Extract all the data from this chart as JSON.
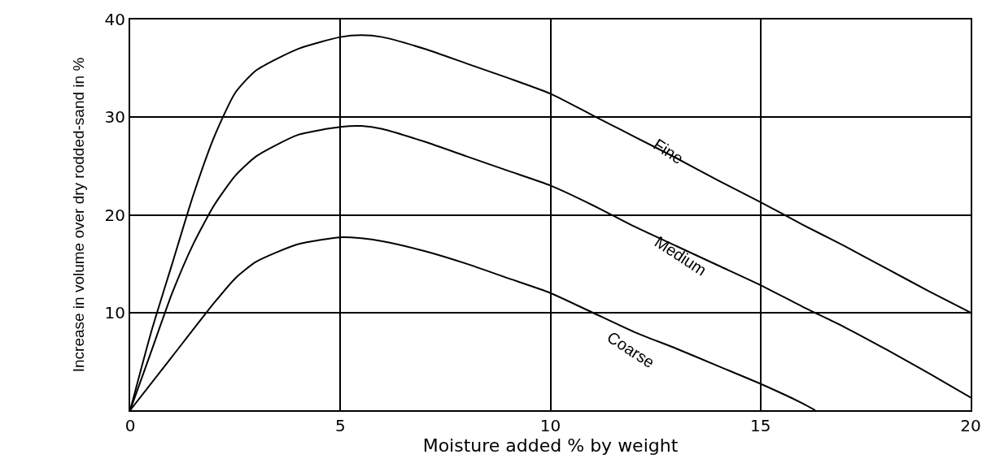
{
  "chart_data": {
    "type": "line",
    "xlabel": "Moisture added % by weight",
    "ylabel": "Increase in volume over dry rodded-sand in %",
    "xlim": [
      0,
      20
    ],
    "ylim": [
      0,
      40
    ],
    "xticks": [
      0,
      5,
      10,
      15,
      20
    ],
    "yticks": [
      10,
      20,
      30,
      40
    ],
    "grid": true,
    "legend": false,
    "marker": "none",
    "line_style": "solid",
    "series": [
      {
        "name": "Fine",
        "color": "#000000",
        "x": [
          0,
          0.5,
          1,
          1.5,
          2,
          2.5,
          3,
          4,
          5,
          5.5,
          6,
          7,
          8,
          9,
          10,
          11,
          12,
          13,
          14,
          15,
          16,
          17,
          18,
          19,
          20
        ],
        "values": [
          0,
          8,
          15,
          22,
          28,
          32.5,
          34.8,
          37,
          38.2,
          38.4,
          38.2,
          37,
          35.5,
          34,
          32.4,
          30.2,
          28,
          25.8,
          23.5,
          21.3,
          19,
          16.8,
          14.5,
          12.2,
          10
        ]
      },
      {
        "name": "Medium",
        "color": "#000000",
        "x": [
          0,
          0.5,
          1,
          1.5,
          2,
          2.5,
          3,
          4,
          5,
          5.5,
          6,
          7,
          8,
          9,
          10,
          11,
          12,
          13,
          14,
          15,
          16,
          17,
          18,
          19,
          20
        ],
        "values": [
          0,
          6,
          12,
          17,
          21,
          24,
          26,
          28.2,
          29,
          29.1,
          28.8,
          27.5,
          26,
          24.5,
          23,
          21,
          18.8,
          16.8,
          14.8,
          12.8,
          10.6,
          8.5,
          6.2,
          3.8,
          1.3
        ]
      },
      {
        "name": "Coarse",
        "color": "#000000",
        "x": [
          0,
          1,
          2,
          2.5,
          3,
          4,
          5,
          5.5,
          6,
          7,
          8,
          9,
          10,
          11,
          12,
          13,
          14,
          15,
          16,
          16.3
        ],
        "values": [
          0,
          5.5,
          11,
          13.5,
          15.2,
          17,
          17.7,
          17.6,
          17.3,
          16.3,
          15,
          13.5,
          12,
          10,
          8,
          6.3,
          4.5,
          2.7,
          0.7,
          0
        ]
      }
    ]
  }
}
